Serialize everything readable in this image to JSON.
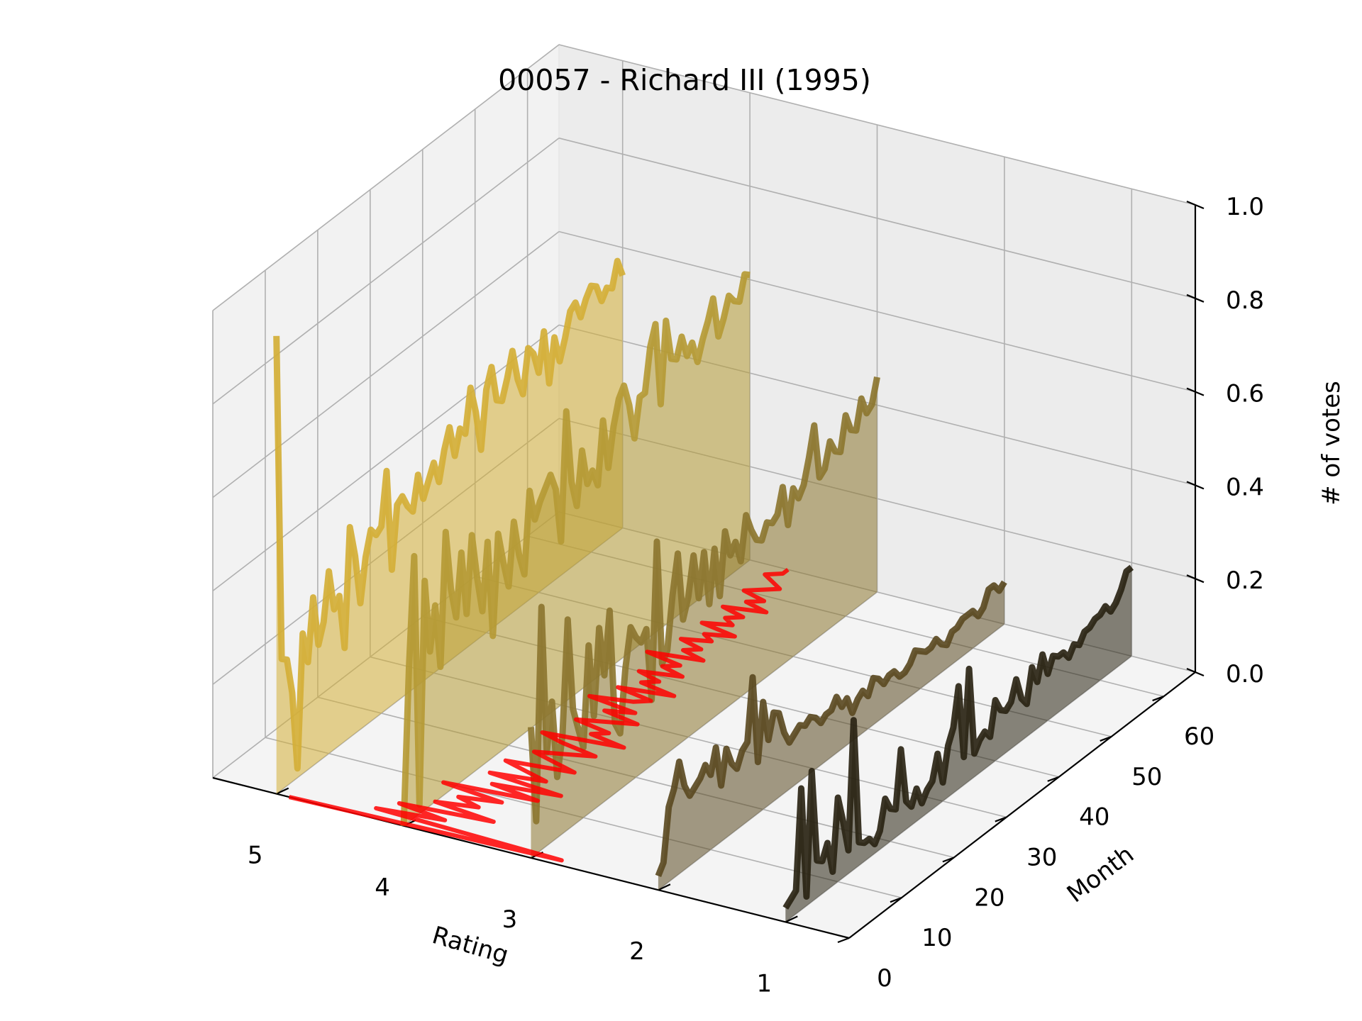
{
  "chart_data": {
    "type": "line",
    "title": "00057 - Richard III (1995)",
    "xlabel": "Rating",
    "ylabel": "Month",
    "zlabel": "# of votes",
    "x_ticks": [
      "5",
      "4",
      "3",
      "2",
      "1"
    ],
    "y_ticks": [
      "0",
      "10",
      "20",
      "30",
      "40",
      "50",
      "60"
    ],
    "z_ticks": [
      "0.0",
      "0.2",
      "0.4",
      "0.6",
      "0.8",
      "1.0"
    ],
    "xlim": [
      0.5,
      5.5
    ],
    "ylim": [
      0,
      66
    ],
    "zlim": [
      0,
      1
    ],
    "grid": true,
    "colors": {
      "rating_5": "#d4af37",
      "rating_4": "#b59a35",
      "rating_3": "#8c7630",
      "rating_2": "#5b4a22",
      "rating_1": "#2a2413",
      "mean_line": "#ff0000"
    },
    "series": [
      {
        "rating": 1,
        "values": [
          0.03,
          0.04,
          0.05,
          0.26,
          0.02,
          0.28,
          0.08,
          0.07,
          0.1,
          0.03,
          0.18,
          0.12,
          0.05,
          0.32,
          0.05,
          0.04,
          0.04,
          0.02,
          0.04,
          0.1,
          0.07,
          0.06,
          0.18,
          0.06,
          0.04,
          0.07,
          0.03,
          0.05,
          0.06,
          0.11,
          0.04,
          0.11,
          0.14,
          0.22,
          0.06,
          0.24,
          0.05,
          0.07,
          0.08,
          0.06,
          0.13,
          0.1,
          0.09,
          0.1,
          0.14,
          0.09,
          0.07,
          0.14,
          0.1,
          0.15,
          0.1,
          0.13,
          0.12,
          0.12,
          0.1,
          0.12,
          0.11,
          0.13,
          0.13,
          0.14,
          0.14,
          0.15,
          0.13,
          0.14,
          0.16,
          0.19,
          0.19
        ]
      },
      {
        "rating": 2,
        "values": [
          0.03,
          0.05,
          0.16,
          0.19,
          0.24,
          0.18,
          0.15,
          0.16,
          0.17,
          0.19,
          0.16,
          0.21,
          0.12,
          0.19,
          0.15,
          0.13,
          0.16,
          0.17,
          0.3,
          0.11,
          0.23,
          0.14,
          0.19,
          0.18,
          0.13,
          0.1,
          0.11,
          0.12,
          0.11,
          0.12,
          0.11,
          0.09,
          0.1,
          0.1,
          0.12,
          0.09,
          0.1,
          0.06,
          0.08,
          0.09,
          0.07,
          0.1,
          0.09,
          0.07,
          0.08,
          0.08,
          0.06,
          0.06,
          0.07,
          0.09,
          0.08,
          0.07,
          0.07,
          0.08,
          0.06,
          0.05,
          0.07,
          0.07,
          0.08,
          0.08,
          0.08,
          0.06,
          0.07,
          0.1,
          0.1,
          0.08,
          0.09
        ]
      },
      {
        "rating": 3,
        "values": [
          0.28,
          0.07,
          0.52,
          0.2,
          0.3,
          0.13,
          0.21,
          0.45,
          0.25,
          0.2,
          0.15,
          0.36,
          0.2,
          0.38,
          0.27,
          0.4,
          0.15,
          0.12,
          0.25,
          0.33,
          0.3,
          0.28,
          0.3,
          0.14,
          0.47,
          0.2,
          0.22,
          0.33,
          0.41,
          0.26,
          0.3,
          0.38,
          0.28,
          0.37,
          0.25,
          0.36,
          0.25,
          0.38,
          0.32,
          0.34,
          0.29,
          0.38,
          0.34,
          0.31,
          0.3,
          0.33,
          0.32,
          0.33,
          0.38,
          0.29,
          0.36,
          0.33,
          0.35,
          0.4,
          0.46,
          0.34,
          0.35,
          0.4,
          0.37,
          0.36,
          0.43,
          0.39,
          0.38,
          0.44,
          0.4,
          0.41,
          0.46
        ]
      },
      {
        "rating": 4,
        "values": [
          0.0,
          0.33,
          0.56,
          0.02,
          0.49,
          0.33,
          0.42,
          0.28,
          0.56,
          0.43,
          0.36,
          0.49,
          0.35,
          0.51,
          0.41,
          0.33,
          0.47,
          0.26,
          0.47,
          0.4,
          0.34,
          0.47,
          0.39,
          0.34,
          0.51,
          0.44,
          0.47,
          0.49,
          0.51,
          0.47,
          0.35,
          0.62,
          0.46,
          0.4,
          0.51,
          0.43,
          0.45,
          0.41,
          0.54,
          0.43,
          0.51,
          0.56,
          0.58,
          0.53,
          0.45,
          0.53,
          0.53,
          0.62,
          0.66,
          0.48,
          0.65,
          0.56,
          0.55,
          0.59,
          0.54,
          0.56,
          0.51,
          0.55,
          0.58,
          0.62,
          0.53,
          0.56,
          0.6,
          0.58,
          0.57,
          0.62,
          0.61
        ]
      },
      {
        "rating": 5,
        "values": [
          0.98,
          0.28,
          0.27,
          0.19,
          0.02,
          0.3,
          0.23,
          0.36,
          0.25,
          0.29,
          0.39,
          0.3,
          0.32,
          0.2,
          0.45,
          0.38,
          0.27,
          0.36,
          0.41,
          0.39,
          0.4,
          0.51,
          0.29,
          0.42,
          0.43,
          0.4,
          0.38,
          0.45,
          0.39,
          0.42,
          0.45,
          0.4,
          0.46,
          0.5,
          0.43,
          0.48,
          0.46,
          0.55,
          0.49,
          0.4,
          0.52,
          0.56,
          0.48,
          0.47,
          0.51,
          0.56,
          0.49,
          0.45,
          0.54,
          0.52,
          0.47,
          0.55,
          0.43,
          0.52,
          0.46,
          0.5,
          0.55,
          0.56,
          0.52,
          0.55,
          0.57,
          0.56,
          0.52,
          0.54,
          0.53,
          0.58,
          0.54
        ]
      },
      {
        "name": "",
        "kind": "mean rating on floor",
        "values": [
          4.9,
          2.8,
          4.3,
          3.8,
          4.2,
          3.5,
          4.0,
          3.7,
          3.9,
          3.6,
          4.1,
          3.4,
          3.8,
          3.3,
          3.9,
          3.5,
          3.7,
          3.9,
          3.4,
          3.6,
          3.8,
          3.6,
          3.4,
          3.7,
          3.9,
          3.3,
          3.6,
          3.5,
          3.8,
          3.6,
          3.4,
          3.7,
          3.5,
          3.9,
          3.6,
          3.5,
          3.8,
          3.4,
          3.7,
          3.6,
          3.8,
          3.5,
          3.7,
          3.6,
          3.9,
          3.5,
          3.7,
          3.6,
          3.8,
          3.6,
          3.7,
          3.5,
          3.8,
          3.6,
          3.7,
          3.6,
          3.8,
          3.5,
          3.7,
          3.6,
          3.8,
          3.7,
          3.6,
          3.7,
          3.8,
          3.7,
          3.7
        ]
      }
    ]
  }
}
